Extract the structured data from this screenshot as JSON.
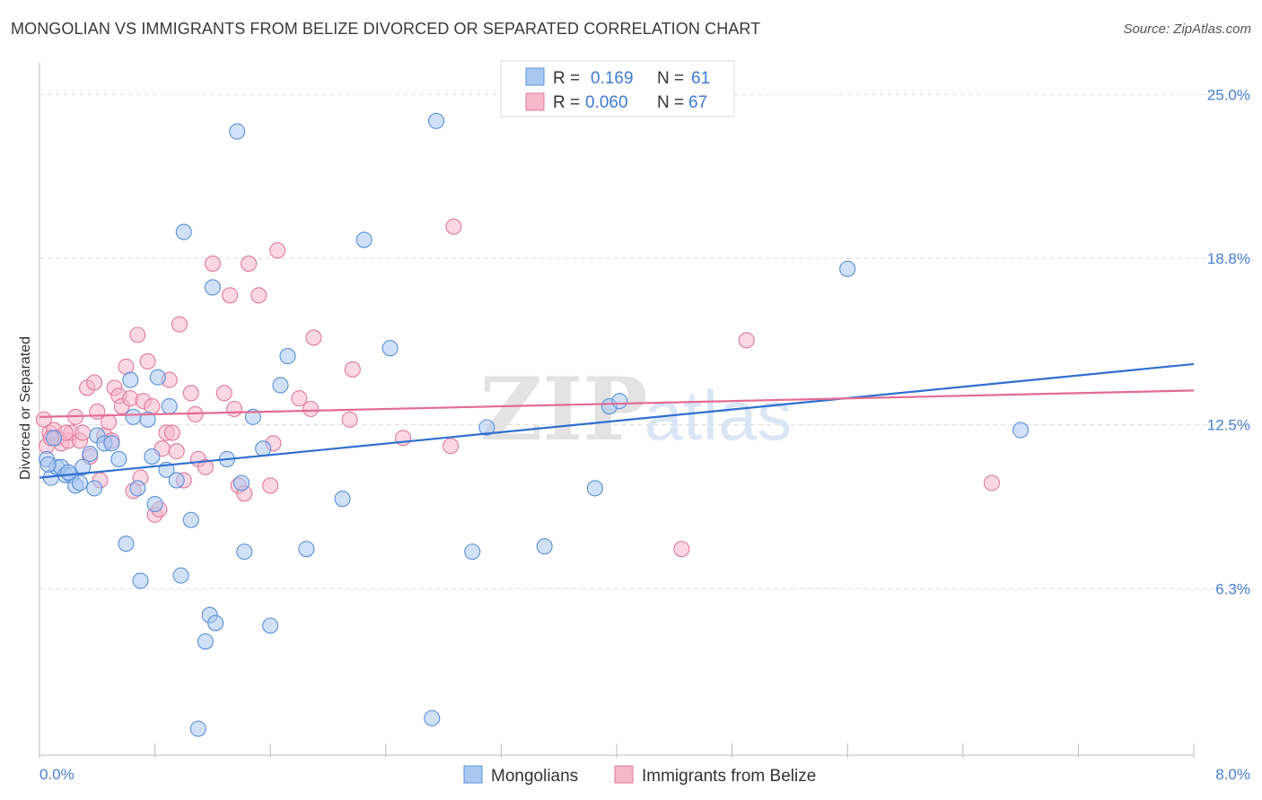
{
  "title": "MONGOLIAN VS IMMIGRANTS FROM BELIZE DIVORCED OR SEPARATED CORRELATION CHART",
  "source": "Source: ZipAtlas.com",
  "watermark": {
    "zip": "ZIP",
    "atlas": "atlas"
  },
  "colors": {
    "blue_fill": "#a9c8f0",
    "blue_stroke": "#5b8fd8",
    "blue_line": "#2f6fd0",
    "pink_fill": "#f5b7ca",
    "pink_stroke": "#e07a9b",
    "pink_line": "#e36b93",
    "tick_text": "#4a7fd1",
    "grid": "#dddddd"
  },
  "legend": {
    "rows": [
      {
        "r_label": "R =",
        "r_value": "0.169",
        "n_label": "N =",
        "n_value": "61"
      },
      {
        "r_label": "R =",
        "r_value": "0.060",
        "n_label": "N =",
        "n_value": "67"
      }
    ]
  },
  "chart_data": {
    "type": "scatter",
    "ylabel": "Divorced or Separated",
    "xlim": [
      0,
      8.0
    ],
    "ylim": [
      0,
      26.2
    ],
    "x_tick_labels": [
      "0.0%",
      "8.0%"
    ],
    "y_ticks": [
      {
        "value": 6.3,
        "label": "6.3%"
      },
      {
        "value": 12.5,
        "label": "12.5%"
      },
      {
        "value": 18.8,
        "label": "18.8%"
      },
      {
        "value": 25.0,
        "label": "25.0%"
      }
    ],
    "series": [
      {
        "name": "Mongolians",
        "trend": {
          "x0": 0.0,
          "y0": 10.5,
          "x1": 8.0,
          "y1": 14.8
        },
        "points": [
          [
            0.05,
            11.2
          ],
          [
            0.08,
            10.5
          ],
          [
            0.1,
            12.0
          ],
          [
            0.12,
            10.9
          ],
          [
            0.15,
            10.9
          ],
          [
            0.18,
            10.6
          ],
          [
            0.22,
            10.6
          ],
          [
            0.25,
            10.2
          ],
          [
            0.28,
            10.3
          ],
          [
            0.3,
            10.9
          ],
          [
            0.35,
            11.4
          ],
          [
            0.38,
            10.1
          ],
          [
            0.4,
            12.1
          ],
          [
            0.45,
            11.8
          ],
          [
            0.5,
            11.8
          ],
          [
            0.55,
            11.2
          ],
          [
            0.6,
            8.0
          ],
          [
            0.63,
            14.2
          ],
          [
            0.65,
            12.8
          ],
          [
            0.68,
            10.1
          ],
          [
            0.7,
            6.6
          ],
          [
            0.75,
            12.7
          ],
          [
            0.78,
            11.3
          ],
          [
            0.8,
            9.5
          ],
          [
            0.82,
            14.3
          ],
          [
            0.88,
            10.8
          ],
          [
            0.9,
            13.2
          ],
          [
            0.95,
            10.4
          ],
          [
            0.98,
            6.8
          ],
          [
            1.0,
            19.8
          ],
          [
            1.05,
            8.9
          ],
          [
            1.1,
            1.0
          ],
          [
            1.15,
            4.3
          ],
          [
            1.18,
            5.3
          ],
          [
            1.22,
            5.0
          ],
          [
            1.2,
            17.7
          ],
          [
            1.3,
            11.2
          ],
          [
            1.37,
            23.6
          ],
          [
            1.4,
            10.3
          ],
          [
            1.42,
            7.7
          ],
          [
            1.48,
            12.8
          ],
          [
            1.55,
            11.6
          ],
          [
            1.6,
            4.9
          ],
          [
            1.67,
            14.0
          ],
          [
            1.72,
            15.1
          ],
          [
            1.85,
            7.8
          ],
          [
            2.1,
            9.7
          ],
          [
            2.25,
            19.5
          ],
          [
            2.43,
            15.4
          ],
          [
            2.72,
            1.4
          ],
          [
            2.75,
            24.0
          ],
          [
            3.0,
            7.7
          ],
          [
            3.1,
            12.4
          ],
          [
            3.5,
            7.9
          ],
          [
            3.85,
            10.1
          ],
          [
            3.95,
            13.2
          ],
          [
            4.02,
            13.4
          ],
          [
            5.6,
            18.4
          ],
          [
            6.8,
            12.3
          ],
          [
            0.06,
            11.0
          ],
          [
            0.2,
            10.7
          ]
        ]
      },
      {
        "name": "Immigrants from Belize",
        "trend": {
          "x0": 0.0,
          "y0": 12.8,
          "x1": 8.0,
          "y1": 13.8
        },
        "points": [
          [
            0.03,
            12.7
          ],
          [
            0.05,
            11.7
          ],
          [
            0.07,
            12.2
          ],
          [
            0.1,
            12.3
          ],
          [
            0.12,
            12.0
          ],
          [
            0.15,
            11.8
          ],
          [
            0.2,
            11.9
          ],
          [
            0.22,
            12.2
          ],
          [
            0.25,
            12.8
          ],
          [
            0.28,
            11.9
          ],
          [
            0.3,
            12.2
          ],
          [
            0.33,
            13.9
          ],
          [
            0.35,
            11.3
          ],
          [
            0.38,
            14.1
          ],
          [
            0.4,
            13.0
          ],
          [
            0.42,
            10.4
          ],
          [
            0.45,
            12.1
          ],
          [
            0.48,
            12.6
          ],
          [
            0.5,
            11.9
          ],
          [
            0.52,
            13.9
          ],
          [
            0.55,
            13.6
          ],
          [
            0.57,
            13.2
          ],
          [
            0.6,
            14.7
          ],
          [
            0.63,
            13.5
          ],
          [
            0.65,
            10.0
          ],
          [
            0.68,
            15.9
          ],
          [
            0.7,
            10.5
          ],
          [
            0.72,
            13.4
          ],
          [
            0.75,
            14.9
          ],
          [
            0.78,
            13.2
          ],
          [
            0.8,
            9.1
          ],
          [
            0.83,
            9.3
          ],
          [
            0.85,
            11.6
          ],
          [
            0.88,
            12.2
          ],
          [
            0.9,
            14.2
          ],
          [
            0.92,
            12.2
          ],
          [
            0.95,
            11.5
          ],
          [
            0.97,
            16.3
          ],
          [
            1.0,
            10.4
          ],
          [
            1.05,
            13.7
          ],
          [
            1.08,
            12.9
          ],
          [
            1.1,
            11.2
          ],
          [
            1.15,
            10.9
          ],
          [
            1.2,
            18.6
          ],
          [
            1.28,
            13.7
          ],
          [
            1.32,
            17.4
          ],
          [
            1.35,
            13.1
          ],
          [
            1.38,
            10.2
          ],
          [
            1.42,
            9.9
          ],
          [
            1.45,
            18.6
          ],
          [
            1.52,
            17.4
          ],
          [
            1.62,
            11.8
          ],
          [
            1.6,
            10.2
          ],
          [
            1.65,
            19.1
          ],
          [
            1.8,
            13.5
          ],
          [
            1.88,
            13.1
          ],
          [
            1.9,
            15.8
          ],
          [
            2.15,
            12.7
          ],
          [
            2.17,
            14.6
          ],
          [
            2.52,
            12.0
          ],
          [
            2.85,
            11.7
          ],
          [
            2.87,
            20.0
          ],
          [
            4.45,
            7.8
          ],
          [
            4.9,
            15.7
          ],
          [
            6.6,
            10.3
          ],
          [
            0.08,
            12.0
          ],
          [
            0.18,
            12.2
          ]
        ]
      }
    ]
  }
}
